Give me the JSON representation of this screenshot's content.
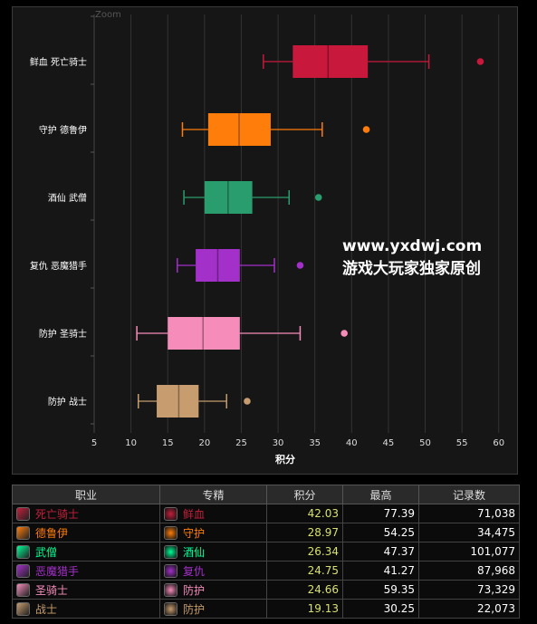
{
  "chart": {
    "zoom_label": "Zoom",
    "xlabel": "积分",
    "ticks": [
      5,
      10,
      15,
      20,
      25,
      30,
      35,
      40,
      45,
      50,
      55,
      60
    ]
  },
  "chart_data": {
    "type": "boxplot",
    "orientation": "horizontal",
    "xlabel": "积分",
    "xlim": [
      5,
      62
    ],
    "categories": [
      "鲜血 死亡骑士",
      "守护 德鲁伊",
      "酒仙 武僧",
      "复仇 恶魔猎手",
      "防护 圣骑士",
      "防护 战士"
    ],
    "series": [
      {
        "category": "鲜血 死亡骑士",
        "whisker_low": 28,
        "q1": 32,
        "median": 36.8,
        "q3": 42.2,
        "whisker_high": 50.5,
        "outliers": [
          57.5
        ],
        "color": "#c8183c"
      },
      {
        "category": "守护 德鲁伊",
        "whisker_low": 17,
        "q1": 20.5,
        "median": 24.7,
        "q3": 29,
        "whisker_high": 36,
        "outliers": [
          42
        ],
        "color": "#ff7d0a"
      },
      {
        "category": "酒仙 武僧",
        "whisker_low": 17.2,
        "q1": 20,
        "median": 23.2,
        "q3": 26.5,
        "whisker_high": 31.5,
        "outliers": [
          35.5
        ],
        "color": "#2a9d6e"
      },
      {
        "category": "复仇 恶魔猎手",
        "whisker_low": 16.3,
        "q1": 18.8,
        "median": 21.8,
        "q3": 24.8,
        "whisker_high": 29.5,
        "outliers": [
          33
        ],
        "color": "#a330c9"
      },
      {
        "category": "防护 圣骑士",
        "whisker_low": 10.8,
        "q1": 15,
        "median": 19.8,
        "q3": 24.8,
        "whisker_high": 33,
        "outliers": [
          39
        ],
        "color": "#f58cba"
      },
      {
        "category": "防护 战士",
        "whisker_low": 11,
        "q1": 13.5,
        "median": 16.5,
        "q3": 19.2,
        "whisker_high": 23,
        "outliers": [
          25.8
        ],
        "color": "#c79c6e"
      }
    ],
    "grid": true
  },
  "watermark": {
    "line1": "www.yxdwj.com",
    "line2": "游戏大玩家独家原创"
  },
  "table": {
    "headers": [
      "职业",
      "专精",
      "积分",
      "最高",
      "记录数"
    ],
    "rows": [
      {
        "class": "死亡骑士",
        "spec": "鲜血",
        "score": "42.03",
        "max": "77.39",
        "count": "71,038",
        "color": "#c41f3b",
        "class_icon": "death-knight-icon",
        "spec_icon": "blood-spec-icon"
      },
      {
        "class": "德鲁伊",
        "spec": "守护",
        "score": "28.97",
        "max": "54.25",
        "count": "34,475",
        "color": "#ff7d0a",
        "class_icon": "druid-icon",
        "spec_icon": "guardian-spec-icon"
      },
      {
        "class": "武僧",
        "spec": "酒仙",
        "score": "26.34",
        "max": "47.37",
        "count": "101,077",
        "color": "#00ff96",
        "class_icon": "monk-icon",
        "spec_icon": "brewmaster-spec-icon"
      },
      {
        "class": "恶魔猎手",
        "spec": "复仇",
        "score": "24.75",
        "max": "41.27",
        "count": "87,968",
        "color": "#a330c9",
        "class_icon": "demon-hunter-icon",
        "spec_icon": "vengeance-spec-icon"
      },
      {
        "class": "圣骑士",
        "spec": "防护",
        "score": "24.66",
        "max": "59.35",
        "count": "73,329",
        "color": "#f58cba",
        "class_icon": "paladin-icon",
        "spec_icon": "protection-paladin-spec-icon"
      },
      {
        "class": "战士",
        "spec": "防护",
        "score": "19.13",
        "max": "30.25",
        "count": "22,073",
        "color": "#c79c6e",
        "class_icon": "warrior-icon",
        "spec_icon": "protection-warrior-spec-icon"
      }
    ]
  }
}
